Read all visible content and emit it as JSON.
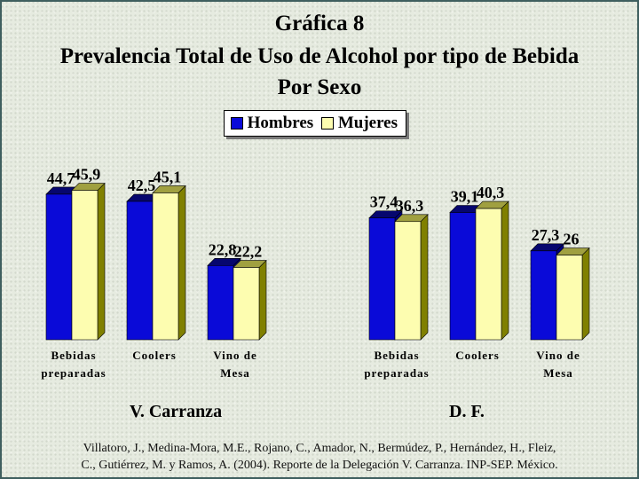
{
  "title_lines": [
    "Gráfica 8",
    "Prevalencia Total de Uso de Alcohol por tipo de Bebida",
    "Por Sexo"
  ],
  "legend": [
    "Hombres",
    "Mujeres"
  ],
  "colors": {
    "hombres": "#0a0ad8",
    "mujeres": "#fdfdb0"
  },
  "chart_data": [
    {
      "type": "bar",
      "title": "V. Carranza",
      "categories": [
        [
          "Bebidas",
          "preparadas"
        ],
        [
          "Coolers"
        ],
        [
          "Vino de",
          "Mesa"
        ]
      ],
      "series": [
        {
          "name": "Hombres",
          "values": [
            44.7,
            42.5,
            22.8
          ],
          "labels": [
            "44,7",
            "42,5",
            "22,8"
          ]
        },
        {
          "name": "Mujeres",
          "values": [
            45.9,
            45.1,
            22.2
          ],
          "labels": [
            "45,9",
            "45,1",
            "22,2"
          ]
        }
      ],
      "ylim": [
        0,
        50
      ],
      "grid": false
    },
    {
      "type": "bar",
      "title": "D. F.",
      "categories": [
        [
          "Bebidas",
          "preparadas"
        ],
        [
          "Coolers"
        ],
        [
          "Vino de",
          "Mesa"
        ]
      ],
      "series": [
        {
          "name": "Hombres",
          "values": [
            37.4,
            39.1,
            27.3
          ],
          "labels": [
            "37,4",
            "39,1",
            "27,3"
          ]
        },
        {
          "name": "Mujeres",
          "values": [
            36.3,
            40.3,
            26
          ],
          "labels": [
            "36,3",
            "40,3",
            "26"
          ]
        }
      ],
      "ylim": [
        0,
        50
      ],
      "grid": false
    }
  ],
  "source_lines": [
    "Villatoro, J., Medina-Mora, M.E., Rojano, C., Amador, N., Bermúdez, P., Hernández, H., Fleiz,",
    "C., Gutiérrez, M. y Ramos, A. (2004). Reporte de la Delegación V. Carranza. INP-SEP. México."
  ]
}
